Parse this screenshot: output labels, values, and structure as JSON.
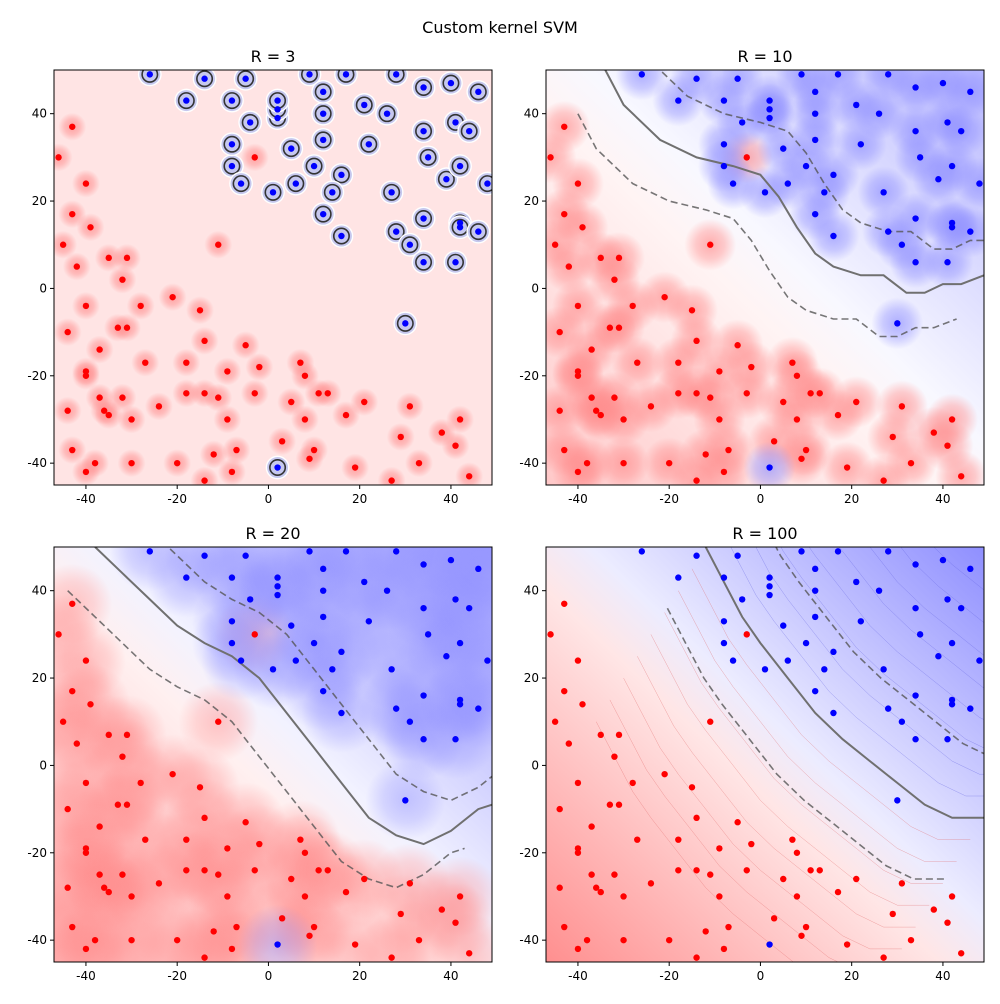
{
  "figure": {
    "suptitle": "Custom kernel SVM"
  },
  "colors": {
    "class_red": "#ff0000",
    "class_blue": "#0000ff",
    "region_red": "#ff8a8a",
    "region_blue": "#8f8fff",
    "boundary": "#707070"
  },
  "chart_data": [
    {
      "type": "scatter",
      "title": "R = 3",
      "xlim": [
        -47,
        49
      ],
      "ylim": [
        -45,
        50
      ],
      "xticks": [
        "-40",
        "-20",
        "0",
        "20",
        "40"
      ],
      "yticks": [
        "-40",
        "-20",
        "0",
        "20",
        "40"
      ],
      "xtick_values": [
        -40,
        -20,
        0,
        20,
        40
      ],
      "ytick_values": [
        -40,
        -20,
        0,
        20,
        40
      ],
      "blur_radius": 3
    },
    {
      "type": "scatter",
      "title": "R = 10",
      "xlim": [
        -47,
        49
      ],
      "ylim": [
        -45,
        50
      ],
      "xticks": [
        "-40",
        "-20",
        "0",
        "20",
        "40"
      ],
      "yticks": [
        "-40",
        "-20",
        "0",
        "20",
        "40"
      ],
      "xtick_values": [
        -40,
        -20,
        0,
        20,
        40
      ],
      "ytick_values": [
        -40,
        -20,
        0,
        20,
        40
      ],
      "blur_radius": 10
    },
    {
      "type": "scatter",
      "title": "R = 20",
      "xlim": [
        -47,
        49
      ],
      "ylim": [
        -45,
        50
      ],
      "xticks": [
        "-40",
        "-20",
        "0",
        "20",
        "40"
      ],
      "yticks": [
        "-40",
        "-20",
        "0",
        "20",
        "40"
      ],
      "xtick_values": [
        -40,
        -20,
        0,
        20,
        40
      ],
      "ytick_values": [
        -40,
        -20,
        0,
        20,
        40
      ],
      "blur_radius": 20
    },
    {
      "type": "scatter",
      "title": "R = 100",
      "xlim": [
        -47,
        49
      ],
      "ylim": [
        -45,
        50
      ],
      "xticks": [
        "-40",
        "-20",
        "0",
        "20",
        "40"
      ],
      "yticks": [
        "-40",
        "-20",
        "0",
        "20",
        "40"
      ],
      "xtick_values": [
        -40,
        -20,
        0,
        20,
        40
      ],
      "ytick_values": [
        -40,
        -20,
        0,
        20,
        40
      ],
      "blur_radius": 100
    }
  ],
  "points": {
    "red": [
      [
        -43,
        37
      ],
      [
        -40,
        24
      ],
      [
        -43,
        17
      ],
      [
        -46,
        30
      ],
      [
        -45,
        10
      ],
      [
        -39,
        14
      ],
      [
        -42,
        5
      ],
      [
        -35,
        7
      ],
      [
        -31,
        7
      ],
      [
        -32,
        2
      ],
      [
        -40,
        -4
      ],
      [
        -44,
        -10
      ],
      [
        -33,
        -9
      ],
      [
        -31,
        -9
      ],
      [
        -37,
        -14
      ],
      [
        -28,
        -4
      ],
      [
        -27,
        -17
      ],
      [
        -21,
        -2
      ],
      [
        -15,
        -5
      ],
      [
        -14,
        -12
      ],
      [
        -18,
        -17
      ],
      [
        -11,
        10
      ],
      [
        -5,
        -13
      ],
      [
        -9,
        -19
      ],
      [
        -2,
        -18
      ],
      [
        -40,
        -19
      ],
      [
        -40,
        -20
      ],
      [
        -37,
        -25
      ],
      [
        -36,
        -28
      ],
      [
        -35,
        -29
      ],
      [
        -32,
        -25
      ],
      [
        -30,
        -30
      ],
      [
        -24,
        -27
      ],
      [
        -44,
        -28
      ],
      [
        -43,
        -37
      ],
      [
        -40,
        -42
      ],
      [
        -38,
        -40
      ],
      [
        -30,
        -40
      ],
      [
        -20,
        -40
      ],
      [
        -18,
        -24
      ],
      [
        -14,
        -24
      ],
      [
        -12,
        -38
      ],
      [
        -11,
        -25
      ],
      [
        -9,
        -30
      ],
      [
        -7,
        -37
      ],
      [
        -8,
        -42
      ],
      [
        -14,
        -44
      ],
      [
        -3,
        -24
      ],
      [
        7,
        -17
      ],
      [
        8,
        -20
      ],
      [
        8,
        -30
      ],
      [
        10,
        -37
      ],
      [
        9,
        -39
      ],
      [
        5,
        -26
      ],
      [
        3,
        -35
      ],
      [
        11,
        -24
      ],
      [
        13,
        -24
      ],
      [
        17,
        -29
      ],
      [
        21,
        -26
      ],
      [
        19,
        -41
      ],
      [
        27,
        -44
      ],
      [
        29,
        -34
      ],
      [
        31,
        -27
      ],
      [
        33,
        -40
      ],
      [
        38,
        -33
      ],
      [
        41,
        -36
      ],
      [
        42,
        -30
      ],
      [
        44,
        -43
      ],
      [
        -3,
        30
      ]
    ],
    "blue": [
      [
        -26,
        49
      ],
      [
        -18,
        43
      ],
      [
        -14,
        48
      ],
      [
        -8,
        28
      ],
      [
        -6,
        24
      ],
      [
        -8,
        33
      ],
      [
        -5,
        48
      ],
      [
        -4,
        38
      ],
      [
        -8,
        43
      ],
      [
        1,
        22
      ],
      [
        2,
        39
      ],
      [
        2,
        41
      ],
      [
        2,
        43
      ],
      [
        5,
        32
      ],
      [
        6,
        24
      ],
      [
        9,
        49
      ],
      [
        10,
        28
      ],
      [
        12,
        34
      ],
      [
        12,
        40
      ],
      [
        12,
        45
      ],
      [
        12,
        17
      ],
      [
        16,
        26
      ],
      [
        16,
        12
      ],
      [
        14,
        22
      ],
      [
        17,
        49
      ],
      [
        21,
        42
      ],
      [
        22,
        33
      ],
      [
        26,
        40
      ],
      [
        27,
        22
      ],
      [
        28,
        13
      ],
      [
        28,
        49
      ],
      [
        31,
        10
      ],
      [
        34,
        16
      ],
      [
        34,
        6
      ],
      [
        34,
        36
      ],
      [
        35,
        30
      ],
      [
        34,
        46
      ],
      [
        39,
        25
      ],
      [
        40,
        47
      ],
      [
        41,
        38
      ],
      [
        42,
        28
      ],
      [
        44,
        36
      ],
      [
        42,
        15
      ],
      [
        42,
        14
      ],
      [
        41,
        6
      ],
      [
        46,
        13
      ],
      [
        46,
        45
      ],
      [
        48,
        24
      ],
      [
        30,
        -8
      ],
      [
        2,
        -41
      ]
    ]
  }
}
